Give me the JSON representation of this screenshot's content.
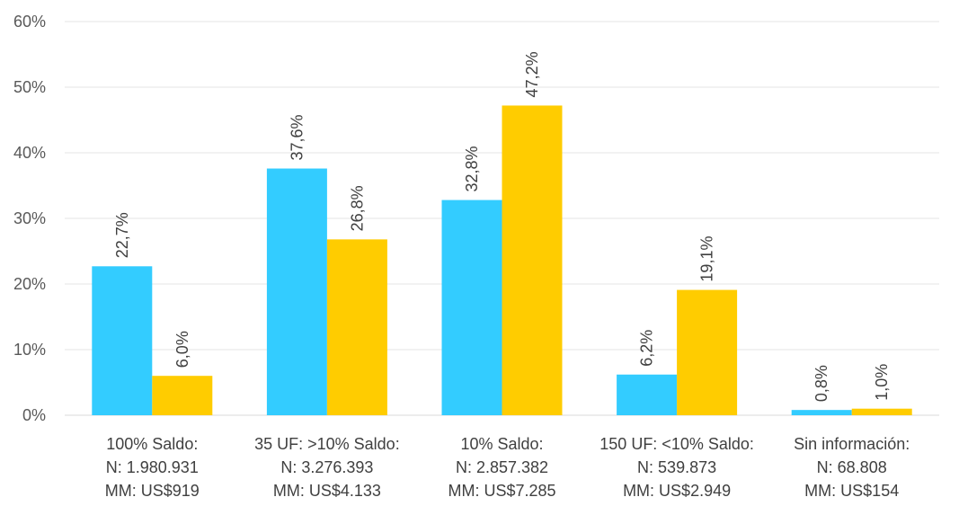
{
  "chart_data": {
    "type": "bar",
    "title": "",
    "xlabel": "",
    "ylabel": "",
    "ylim": [
      0,
      60
    ],
    "yticks": [
      "0%",
      "10%",
      "20%",
      "30%",
      "40%",
      "50%",
      "60%"
    ],
    "ytick_values": [
      0,
      10,
      20,
      30,
      40,
      50,
      60
    ],
    "grid": true,
    "legend": "none",
    "categories": [
      [
        "100% Saldo:",
        "N: 1.980.931",
        "MM: US$919"
      ],
      [
        "35 UF: >10% Saldo:",
        "N: 3.276.393",
        "MM: US$4.133"
      ],
      [
        "10% Saldo:",
        "N: 2.857.382",
        "MM: US$7.285"
      ],
      [
        "150 UF: <10% Saldo:",
        "N: 539.873",
        "MM: US$2.949"
      ],
      [
        "Sin información:",
        "N: 68.808",
        "MM: US$154"
      ]
    ],
    "series": [
      {
        "color": "#33ccff",
        "values": [
          22.7,
          37.6,
          32.8,
          6.2,
          0.8
        ],
        "labels": [
          "22,7%",
          "37,6%",
          "32,8%",
          "6,2%",
          "0,8%"
        ]
      },
      {
        "color": "#ffcc00",
        "values": [
          6.0,
          26.8,
          47.2,
          19.1,
          1.0
        ],
        "labels": [
          "6,0%",
          "26,8%",
          "47,2%",
          "19,1%",
          "1,0%"
        ]
      }
    ]
  }
}
